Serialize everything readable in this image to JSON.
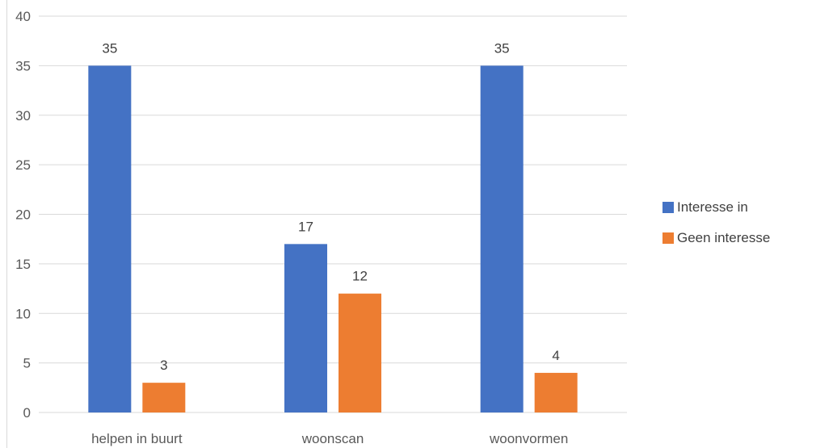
{
  "chart_data": {
    "type": "bar",
    "categories": [
      "helpen in buurt",
      "woonscan",
      "woonvormen"
    ],
    "series": [
      {
        "name": "Interesse in",
        "values": [
          35,
          17,
          35
        ],
        "color": "#4472C4"
      },
      {
        "name": "Geen interesse",
        "values": [
          3,
          12,
          4
        ],
        "color": "#ED7D31"
      }
    ],
    "ylim": [
      0,
      40
    ],
    "yticks": [
      0,
      5,
      10,
      15,
      20,
      25,
      30,
      35,
      40
    ],
    "grid": true,
    "legend_position": "right",
    "data_labels": true
  }
}
